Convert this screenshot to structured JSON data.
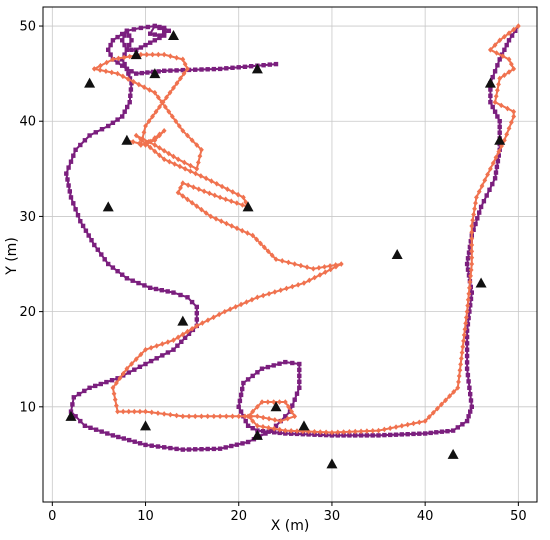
{
  "chart_data": {
    "type": "scatter",
    "title": "",
    "xlabel": "X (m)",
    "ylabel": "Y (m)",
    "xlim": [
      -1,
      52
    ],
    "ylim": [
      0,
      52
    ],
    "xticks": [
      "0",
      "10",
      "20",
      "30",
      "40",
      "50"
    ],
    "yticks": [
      "10",
      "20",
      "30",
      "40",
      "50"
    ],
    "grid": true,
    "colors": {
      "path_a": "#7b1f7e",
      "path_b": "#f0724f",
      "landmark": "#111111"
    },
    "landmarks": [
      {
        "x": 13,
        "y": 49
      },
      {
        "x": 9,
        "y": 47
      },
      {
        "x": 11,
        "y": 45
      },
      {
        "x": 4,
        "y": 44
      },
      {
        "x": 22,
        "y": 45.5
      },
      {
        "x": 8,
        "y": 38
      },
      {
        "x": 6,
        "y": 31
      },
      {
        "x": 21,
        "y": 31
      },
      {
        "x": 14,
        "y": 19
      },
      {
        "x": 2,
        "y": 9
      },
      {
        "x": 10,
        "y": 8
      },
      {
        "x": 22,
        "y": 7
      },
      {
        "x": 24,
        "y": 10
      },
      {
        "x": 27,
        "y": 8
      },
      {
        "x": 30,
        "y": 4
      },
      {
        "x": 37,
        "y": 26
      },
      {
        "x": 43,
        "y": 5
      },
      {
        "x": 46,
        "y": 23
      },
      {
        "x": 47,
        "y": 44
      },
      {
        "x": 48,
        "y": 38
      }
    ],
    "series": [
      {
        "marker": "square",
        "color": "#7b1f7e",
        "x": [
          24,
          18,
          12,
          9,
          8,
          7.5,
          8,
          8.5,
          8,
          7.5,
          8,
          9,
          10,
          11,
          12,
          12,
          11,
          10.5,
          11.5,
          12.5,
          12,
          11,
          9.5,
          8,
          6.5,
          6,
          6.5,
          8,
          8.5,
          8.3,
          7.5,
          6,
          4,
          2.5,
          1.5,
          2,
          3,
          4.5,
          6,
          8,
          10.5,
          13,
          14.5,
          15.5,
          15.5,
          13,
          10,
          7,
          4,
          2.3,
          2,
          3.5,
          6.5,
          10,
          14,
          18,
          21,
          23.5,
          25.5,
          26.5,
          26.5,
          25,
          22.5,
          20.5,
          20,
          21,
          22,
          25,
          30,
          35,
          40,
          43,
          44.5,
          45,
          44.5,
          44.5,
          45,
          44.5,
          45,
          46,
          47.5,
          48,
          48,
          47,
          47,
          48,
          49,
          50
        ],
        "y": [
          46,
          45.5,
          45.3,
          45,
          45.5,
          46.5,
          47.5,
          48.5,
          49.5,
          48.5,
          47.5,
          47.5,
          48,
          48.5,
          49,
          49.6,
          50,
          49.2,
          49,
          49.5,
          49.8,
          50,
          49.8,
          49.5,
          48.5,
          47.5,
          46.5,
          45.5,
          44,
          42,
          40.5,
          39.5,
          38.5,
          37,
          34.5,
          32,
          29.5,
          27,
          25,
          23.5,
          22.5,
          22,
          21.5,
          20.5,
          18.5,
          16,
          14.5,
          13,
          12,
          11,
          9.5,
          8,
          7,
          6,
          5.5,
          5.6,
          6.3,
          7.5,
          9.5,
          12,
          14.5,
          14.7,
          14,
          12.5,
          10,
          8,
          7.5,
          7.2,
          7,
          7,
          7.2,
          7.5,
          8.5,
          10,
          14,
          18,
          22,
          25,
          28,
          31,
          34,
          37,
          40,
          42,
          44,
          46.5,
          48.5,
          50
        ]
      },
      {
        "marker": "diamond",
        "color": "#f0724f",
        "x": [
          50,
          48,
          47,
          49,
          49.5,
          48,
          47.5,
          49.5,
          49.5,
          48.5,
          47,
          45.5,
          45,
          45,
          44.5,
          43.5,
          40,
          35,
          30,
          25,
          22,
          21,
          22.5,
          25,
          26,
          24.5,
          22,
          20,
          18,
          14,
          10,
          7,
          6.5,
          8,
          10,
          13,
          15.5,
          18.5,
          22,
          27,
          31,
          28,
          24,
          21.5,
          17,
          13.5,
          14,
          18,
          21,
          20.5,
          16.5,
          12,
          9,
          11,
          13.5,
          15.5,
          16,
          14,
          11,
          7,
          4.5,
          6.5,
          9.5,
          12,
          14,
          14.5,
          13,
          11.5,
          10,
          9.5,
          11,
          12,
          10,
          8
        ],
        "y": [
          50,
          48.5,
          47.5,
          46.5,
          45.5,
          44.5,
          42,
          41,
          40.5,
          38,
          35,
          32,
          29,
          25,
          20,
          12,
          8.5,
          7.5,
          7.3,
          7.5,
          8,
          9,
          10.5,
          10.5,
          9,
          8.5,
          9,
          9,
          9,
          9,
          9.5,
          9.5,
          12,
          14,
          16,
          17,
          18.5,
          20,
          21.5,
          23,
          25,
          24.5,
          25.5,
          28,
          30,
          32.5,
          33.5,
          32,
          31,
          32,
          34,
          36,
          38.5,
          37.5,
          36,
          35,
          37,
          39,
          43,
          45,
          45.5,
          46.5,
          47,
          47,
          46.5,
          45.5,
          43.5,
          41.5,
          39.5,
          37.5,
          38,
          39,
          37.5,
          38
        ]
      }
    ]
  }
}
